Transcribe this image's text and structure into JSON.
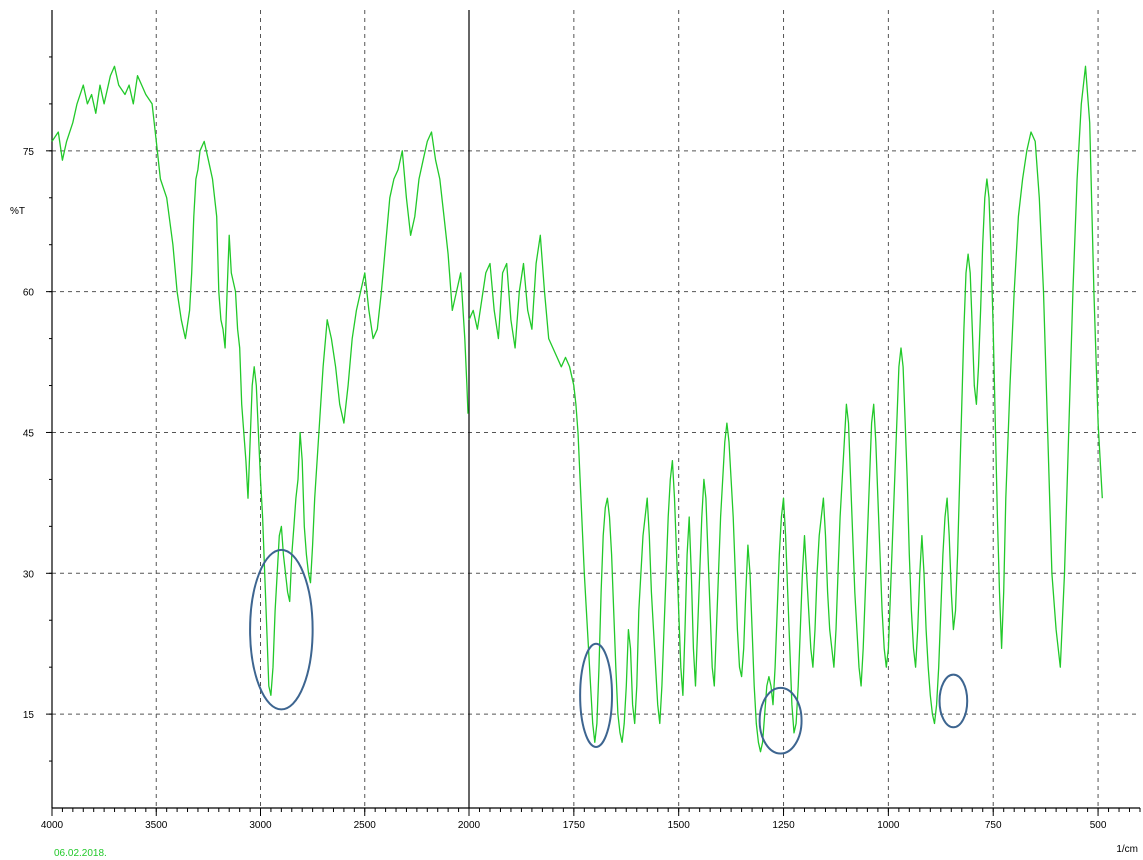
{
  "chart_data": {
    "type": "line",
    "title": "",
    "xlabel": "1/cm",
    "ylabel": "%T",
    "xlim": [
      4000,
      400
    ],
    "ylim": [
      5,
      90
    ],
    "x_ticks": [
      4000,
      3500,
      3000,
      2500,
      2000,
      1750,
      1500,
      1250,
      1000,
      750,
      500
    ],
    "y_ticks": [
      15,
      30,
      45,
      60,
      75
    ],
    "x_tick_labels": [
      "4000",
      "3500",
      "3000",
      "2500",
      "2000",
      "1750",
      "1500",
      "1250",
      "1000",
      "750",
      "500"
    ],
    "y_tick_labels": [
      "15",
      "30",
      "45",
      "60",
      "75"
    ],
    "date": "06.02.2018.",
    "grid": true,
    "line_color": "#22c92a",
    "date_color": "#22c92a",
    "circle_color": "#3d6590",
    "scale_break_x": 2000,
    "series": [
      {
        "x": [
          4000,
          3970,
          3950,
          3930,
          3900,
          3880,
          3850,
          3830,
          3810,
          3790,
          3770,
          3750,
          3720,
          3700,
          3680,
          3650,
          3630,
          3610,
          3590,
          3570,
          3550,
          3520,
          3500,
          3480,
          3450,
          3420,
          3400,
          3380,
          3360,
          3340,
          3330,
          3320,
          3310,
          3300,
          3290,
          3270,
          3250,
          3230,
          3210,
          3200,
          3190,
          3180,
          3170,
          3160,
          3150,
          3140,
          3120,
          3110,
          3100,
          3090,
          3080,
          3070,
          3060,
          3050,
          3040,
          3030,
          3020,
          3010,
          3000,
          2990,
          2980,
          2970,
          2960,
          2950,
          2940,
          2930,
          2920,
          2910,
          2900,
          2890,
          2880,
          2870,
          2860,
          2850,
          2840,
          2830,
          2820,
          2810,
          2800,
          2790,
          2780,
          2770,
          2760,
          2750,
          2740,
          2720,
          2700,
          2680,
          2660,
          2640,
          2620,
          2600,
          2580,
          2560,
          2540,
          2520,
          2500,
          2480,
          2460,
          2440,
          2420,
          2400,
          2380,
          2360,
          2340,
          2320,
          2300,
          2280,
          2260,
          2240,
          2220,
          2200,
          2180,
          2160,
          2140,
          2120,
          2100,
          2080,
          2060,
          2040,
          2020,
          2010,
          2005
        ],
        "y": [
          76,
          77,
          74,
          76,
          78,
          80,
          82,
          80,
          81,
          79,
          82,
          80,
          83,
          84,
          82,
          81,
          82,
          80,
          83,
          82,
          81,
          80,
          76,
          72,
          70,
          65,
          60,
          57,
          55,
          58,
          62,
          68,
          72,
          73,
          75,
          76,
          74,
          72,
          68,
          60,
          57,
          56,
          54,
          60,
          66,
          62,
          60,
          56,
          54,
          48,
          45,
          42,
          38,
          44,
          50,
          52,
          50,
          45,
          40,
          36,
          30,
          24,
          18,
          17,
          20,
          26,
          30,
          34,
          35,
          32,
          30,
          28,
          27,
          32,
          35,
          38,
          40,
          45,
          42,
          35,
          32,
          30,
          29,
          33,
          38,
          45,
          52,
          57,
          55,
          52,
          48,
          46,
          50,
          55,
          58,
          60,
          62,
          58,
          55,
          56,
          60,
          65,
          70,
          72,
          73,
          75,
          70,
          66,
          68,
          72,
          74,
          76,
          77,
          74,
          72,
          68,
          64,
          58,
          60,
          62,
          55,
          50,
          47
        ],
        "x2": [
          2000,
          1990,
          1980,
          1970,
          1960,
          1950,
          1940,
          1930,
          1920,
          1910,
          1900,
          1890,
          1880,
          1870,
          1860,
          1850,
          1840,
          1830,
          1820,
          1810,
          1800,
          1790,
          1780,
          1770,
          1760,
          1750,
          1745,
          1740,
          1735,
          1730,
          1725,
          1720,
          1715,
          1710,
          1705,
          1700,
          1695,
          1690,
          1685,
          1680,
          1675,
          1670,
          1665,
          1660,
          1655,
          1650,
          1645,
          1640,
          1635,
          1630,
          1625,
          1620,
          1615,
          1610,
          1605,
          1600,
          1595,
          1590,
          1585,
          1580,
          1575,
          1570,
          1565,
          1560,
          1555,
          1550,
          1545,
          1540,
          1535,
          1530,
          1525,
          1520,
          1515,
          1510,
          1505,
          1500,
          1495,
          1490,
          1485,
          1480,
          1475,
          1470,
          1465,
          1460,
          1455,
          1450,
          1445,
          1440,
          1435,
          1430,
          1425,
          1420,
          1415,
          1410,
          1405,
          1400,
          1395,
          1390,
          1385,
          1380,
          1375,
          1370,
          1365,
          1360,
          1355,
          1350,
          1345,
          1340,
          1335,
          1330,
          1325,
          1320,
          1315,
          1310,
          1305,
          1300,
          1295,
          1290,
          1285,
          1280,
          1275,
          1270,
          1265,
          1260,
          1255,
          1250,
          1245,
          1240,
          1235,
          1230,
          1225,
          1220,
          1215,
          1210,
          1205,
          1200,
          1195,
          1190,
          1185,
          1180,
          1175,
          1170,
          1165,
          1160,
          1155,
          1150,
          1145,
          1140,
          1135,
          1130,
          1125,
          1120,
          1115,
          1110,
          1105,
          1100,
          1095,
          1090,
          1085,
          1080,
          1075,
          1070,
          1065,
          1060,
          1055,
          1050,
          1045,
          1040,
          1035,
          1030,
          1025,
          1020,
          1015,
          1010,
          1005,
          1000,
          995,
          990,
          985,
          980,
          975,
          970,
          965,
          960,
          955,
          950,
          945,
          940,
          935,
          930,
          925,
          920,
          915,
          910,
          905,
          900,
          895,
          890,
          885,
          880,
          875,
          870,
          865,
          860,
          855,
          850,
          845,
          840,
          835,
          830,
          825,
          820,
          815,
          810,
          805,
          800,
          795,
          790,
          785,
          780,
          775,
          770,
          765,
          760,
          755,
          750,
          745,
          740,
          735,
          730,
          725,
          720,
          710,
          700,
          690,
          680,
          670,
          660,
          650,
          640,
          630,
          620,
          610,
          600,
          590,
          580,
          570,
          560,
          550,
          540,
          530,
          520,
          510,
          500,
          490,
          480,
          470,
          460,
          450,
          440,
          430,
          420,
          410
        ],
        "y2": [
          57,
          58,
          56,
          59,
          62,
          63,
          58,
          55,
          62,
          63,
          57,
          54,
          60,
          63,
          58,
          56,
          63,
          66,
          60,
          55,
          54,
          53,
          52,
          53,
          52,
          50,
          48,
          45,
          40,
          35,
          30,
          26,
          22,
          18,
          14,
          12,
          14,
          20,
          28,
          34,
          37,
          38,
          36,
          32,
          26,
          20,
          15,
          13,
          12,
          14,
          18,
          24,
          22,
          16,
          14,
          18,
          26,
          30,
          34,
          36,
          38,
          34,
          28,
          24,
          20,
          16,
          14,
          18,
          24,
          30,
          36,
          40,
          42,
          38,
          32,
          26,
          20,
          17,
          24,
          32,
          36,
          30,
          22,
          18,
          24,
          30,
          36,
          40,
          38,
          32,
          26,
          20,
          18,
          24,
          30,
          36,
          40,
          44,
          46,
          44,
          40,
          36,
          30,
          24,
          20,
          19,
          22,
          28,
          33,
          30,
          24,
          18,
          14,
          12,
          11,
          12,
          15,
          18,
          19,
          18,
          16,
          20,
          26,
          32,
          36,
          38,
          34,
          28,
          22,
          16,
          13,
          14,
          18,
          24,
          30,
          34,
          30,
          26,
          22,
          20,
          24,
          30,
          34,
          36,
          38,
          34,
          28,
          24,
          22,
          20,
          24,
          30,
          36,
          40,
          44,
          48,
          46,
          40,
          34,
          28,
          24,
          20,
          18,
          22,
          28,
          34,
          40,
          46,
          48,
          44,
          38,
          32,
          26,
          22,
          20,
          22,
          28,
          34,
          40,
          46,
          52,
          54,
          52,
          46,
          40,
          32,
          26,
          22,
          20,
          24,
          30,
          34,
          30,
          24,
          20,
          17,
          15,
          14,
          16,
          20,
          26,
          32,
          36,
          38,
          34,
          28,
          24,
          26,
          32,
          40,
          48,
          56,
          62,
          64,
          62,
          56,
          50,
          48,
          52,
          58,
          65,
          70,
          72,
          70,
          64,
          56,
          46,
          36,
          28,
          22,
          28,
          38,
          50,
          60,
          68,
          72,
          75,
          77,
          76,
          70,
          60,
          45,
          30,
          24,
          20,
          30,
          45,
          60,
          72,
          80,
          84,
          78,
          60,
          46,
          38
        ],
        "name": ""
      }
    ],
    "annotations": [
      {
        "type": "circle",
        "cx": 2900,
        "cy": 24,
        "rx": 150,
        "ry": 8.5
      },
      {
        "type": "circle",
        "cx": 1697,
        "cy": 17,
        "rx": 38,
        "ry": 5.5
      },
      {
        "type": "circle",
        "cx": 1257,
        "cy": 14.3,
        "rx": 50,
        "ry": 3.5
      },
      {
        "type": "circle",
        "cx": 845,
        "cy": 16.4,
        "rx": 33,
        "ry": 2.8
      }
    ]
  }
}
